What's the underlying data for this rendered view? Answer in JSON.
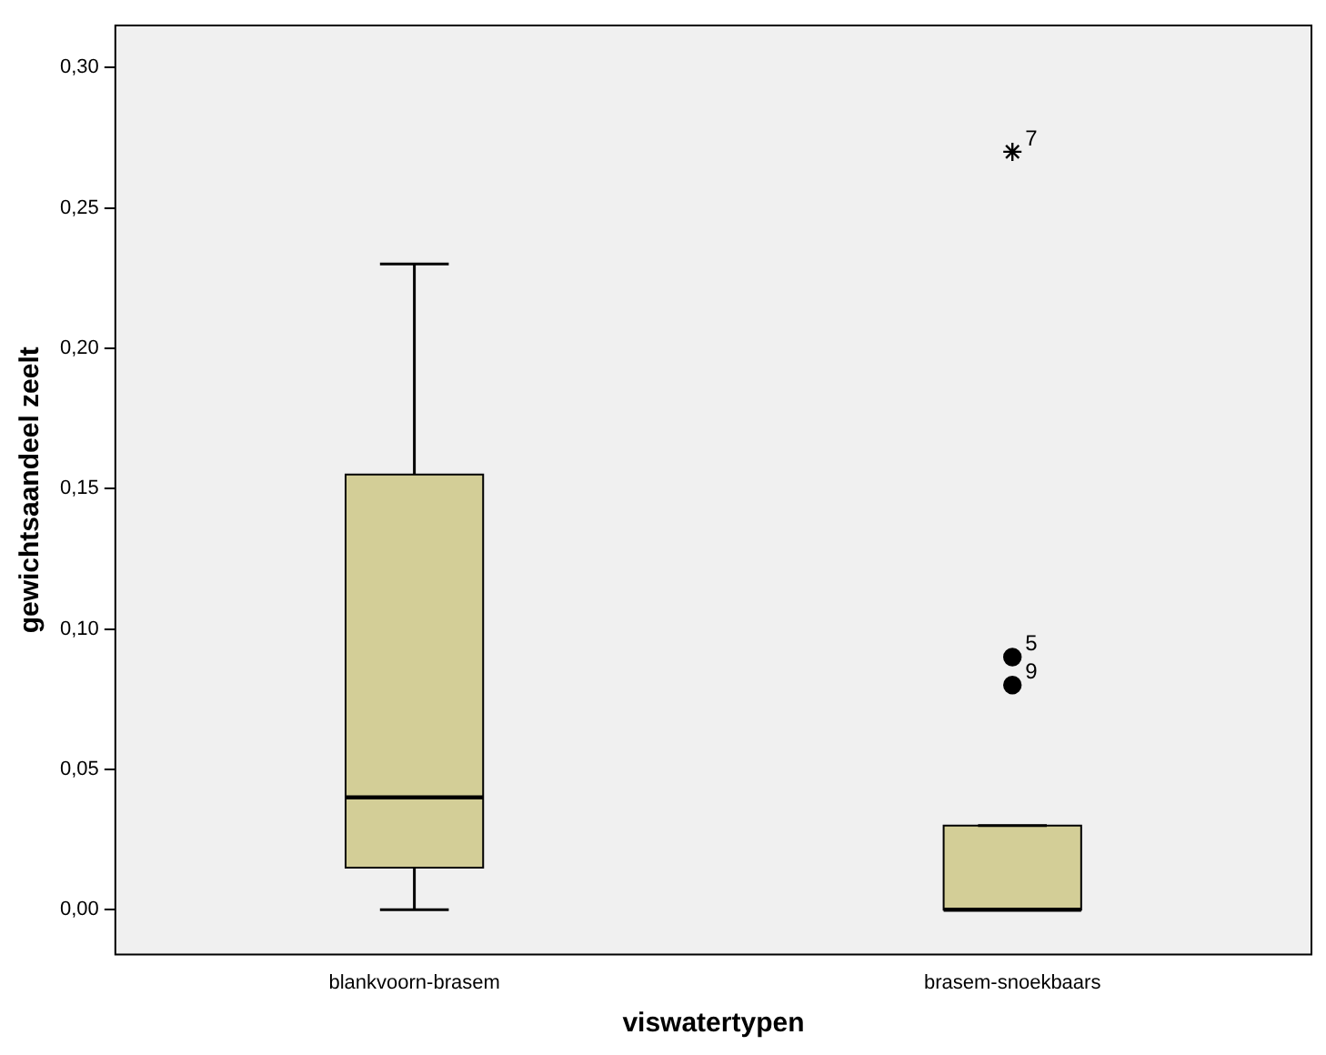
{
  "chart_data": {
    "type": "box",
    "xlabel": "viswatertypen",
    "ylabel": "gewichtsaandeel zeelt",
    "categories": [
      "blankvoorn-brasem",
      "brasem-snoekbaars"
    ],
    "color": "#d3ce97",
    "boxes": [
      {
        "low": 0,
        "q1": 0.015,
        "median": 0.04,
        "q3": 0.155,
        "high": 0.23
      },
      {
        "low": 0,
        "q1": 0,
        "median": 0,
        "q3": 0.03,
        "high": 0.03
      }
    ],
    "series": [
      {
        "type": "scatter",
        "marker": "cross",
        "color": "#000000",
        "x": [
          "brasem-snoekbaars"
        ],
        "values": [
          0.27
        ]
      },
      {
        "type": "scatter",
        "marker": "circle",
        "color": "#000000",
        "x": [
          "brasem-snoekbaars",
          "brasem-snoekbaars"
        ],
        "values": [
          0.09,
          0.08
        ]
      }
    ],
    "annotations": [
      {
        "text": "7",
        "x": "brasem-snoekbaars",
        "y": 0.27
      },
      {
        "text": "5",
        "x": "brasem-snoekbaars",
        "y": 0.09
      },
      {
        "text": "9",
        "x": "brasem-snoekbaars",
        "y": 0.08
      }
    ],
    "ylim": [
      -0.016,
      0.315
    ],
    "yticks": [
      {
        "value": 0,
        "label": "0,00"
      },
      {
        "value": 0.05,
        "label": "0,05"
      },
      {
        "value": 0.1,
        "label": "0,10"
      },
      {
        "value": 0.15,
        "label": "0,15"
      },
      {
        "value": 0.2,
        "label": "0,20"
      },
      {
        "value": 0.25,
        "label": "0,25"
      },
      {
        "value": 0.3,
        "label": "0,30"
      }
    ],
    "grid": false,
    "legend": false
  }
}
